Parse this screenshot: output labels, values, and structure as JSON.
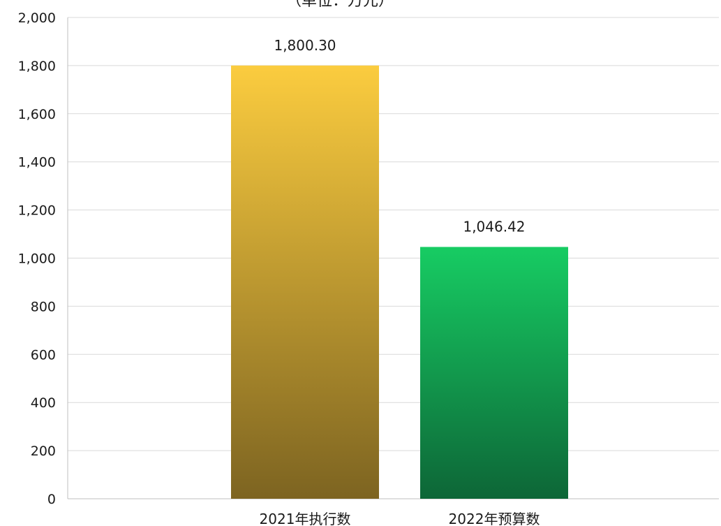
{
  "chart_data": {
    "type": "bar",
    "title": "（单位：万元）",
    "categories": [
      "2021年执行数",
      "2022年预算数"
    ],
    "values": [
      1800.3,
      1046.42
    ],
    "value_labels": [
      "1,800.30",
      "1,046.42"
    ],
    "ylim": [
      0,
      2000
    ],
    "yticks": [
      0,
      200,
      400,
      600,
      800,
      1000,
      1200,
      1400,
      1600,
      1800,
      2000
    ],
    "ytick_labels": [
      "0",
      "200",
      "400",
      "600",
      "800",
      "1,000",
      "1,200",
      "1,400",
      "1,600",
      "1,800",
      "2,000"
    ],
    "xlabel": "",
    "ylabel": "",
    "grid": true,
    "colors": {
      "bars": [
        {
          "top": "#fbcc3f",
          "bottom": "#7d6421"
        },
        {
          "top": "#17cc63",
          "bottom": "#0d6637"
        }
      ],
      "grid": "#d9d9d9",
      "axis": "#bfbfbf"
    }
  }
}
